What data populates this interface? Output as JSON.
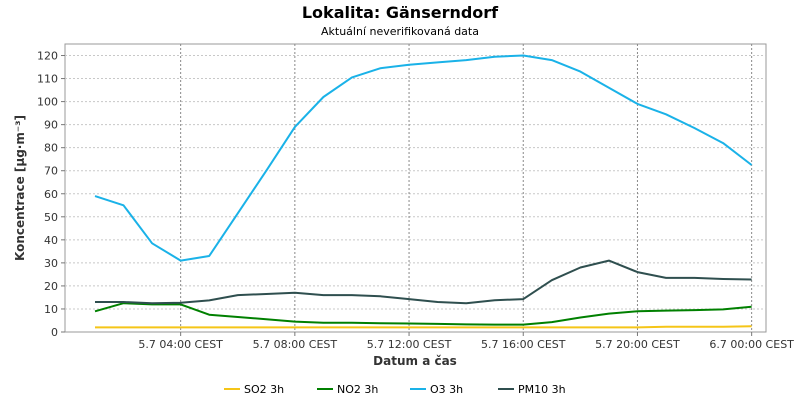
{
  "chart_data": {
    "type": "line",
    "title": "Lokalita: Gänserndorf",
    "subtitle": "Aktuální neverifikovaná data",
    "xlabel": "Datum a čas",
    "ylabel": "Koncentrace [µg·m⁻³]",
    "ylim": [
      0,
      125
    ],
    "yticks": [
      0,
      10,
      20,
      30,
      40,
      50,
      60,
      70,
      80,
      90,
      100,
      110,
      120
    ],
    "xticks": [
      {
        "hour": 4,
        "label": "5.7 04:00 CEST"
      },
      {
        "hour": 8,
        "label": "5.7 08:00 CEST"
      },
      {
        "hour": 12,
        "label": "5.7 12:00 CEST"
      },
      {
        "hour": 16,
        "label": "5.7 16:00 CEST"
      },
      {
        "hour": 20,
        "label": "5.7 20:00 CEST"
      },
      {
        "hour": 24,
        "label": "6.7 00:00 CEST"
      }
    ],
    "x_hours": [
      1,
      2,
      3,
      4,
      5,
      6,
      7,
      8,
      9,
      10,
      11,
      12,
      13,
      14,
      15,
      16,
      17,
      18,
      19,
      20,
      21,
      22,
      23,
      24
    ],
    "grid": true,
    "legend_position": "bottom",
    "series": [
      {
        "name": "SO2 3h",
        "color": "#f5c518",
        "values": [
          2,
          2,
          2,
          2,
          2,
          2,
          2,
          2,
          2,
          2,
          2,
          2,
          2,
          2,
          2,
          2,
          2,
          2,
          2,
          2,
          2.3,
          2.3,
          2.3,
          2.5
        ]
      },
      {
        "name": "NO2 3h",
        "color": "#008000",
        "values": [
          9,
          12.5,
          12,
          12,
          7.5,
          6.5,
          5.5,
          4.5,
          4,
          4,
          3.8,
          3.7,
          3.5,
          3.3,
          3.2,
          3.2,
          4.3,
          6.3,
          8,
          9,
          9.3,
          9.5,
          9.8,
          11
        ]
      },
      {
        "name": "O3 3h",
        "color": "#1ab2e8",
        "values": [
          59,
          55,
          38.5,
          31,
          33,
          51.5,
          70,
          89,
          102,
          110.5,
          114.5,
          116,
          117,
          118,
          119.5,
          120,
          118,
          113,
          106,
          99,
          94.5,
          88.5,
          82,
          72.5
        ]
      },
      {
        "name": "PM10 3h",
        "color": "#2f4f4f",
        "values": [
          13,
          13,
          12.5,
          12.7,
          13.7,
          16,
          16.5,
          17,
          16,
          16,
          15.5,
          14.3,
          13,
          12.5,
          13.8,
          14.3,
          22.5,
          28,
          31,
          26,
          23.5,
          23.5,
          23,
          22.8
        ]
      }
    ]
  }
}
